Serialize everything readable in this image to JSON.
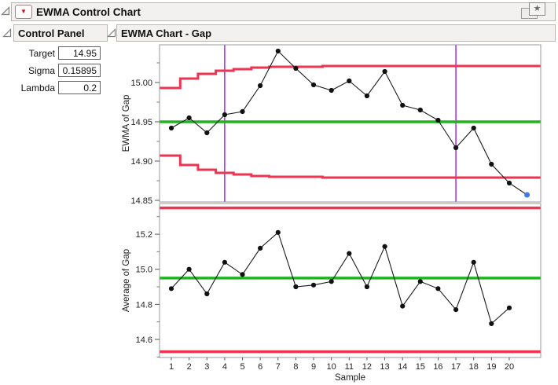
{
  "window": {
    "title": "EWMA Control Chart",
    "pin_glyph": "★",
    "menu_glyph": "▼"
  },
  "control_panel": {
    "title": "Control Panel",
    "fields": [
      {
        "label": "Target",
        "value": "14.95"
      },
      {
        "label": "Sigma",
        "value": "0.15895"
      },
      {
        "label": "Lambda",
        "value": "0.2"
      }
    ]
  },
  "report": {
    "title": "EWMA Chart - Gap"
  },
  "colors": {
    "limit": "#ee3450",
    "center": "#1fb41f",
    "phase": "#a42bdc",
    "line": "#1a1a1a",
    "point": "#111111",
    "selected_point": "#3e7be8",
    "axis": "#9a9a9a",
    "tick_text": "#1f1f1f"
  },
  "chart_data": [
    {
      "type": "line",
      "name": "ewma-chart",
      "ylabel": "EWMA of Gap",
      "xlabel": "",
      "x": [
        1,
        2,
        3,
        4,
        5,
        6,
        7,
        8,
        9,
        10,
        11,
        12,
        13,
        14,
        15,
        16,
        17,
        18,
        19,
        20,
        21
      ],
      "series": [
        {
          "name": "EWMA of Gap",
          "values": [
            14.942,
            14.955,
            14.936,
            14.959,
            14.963,
            14.996,
            15.04,
            15.018,
            14.997,
            14.99,
            15.002,
            14.983,
            15.014,
            14.971,
            14.965,
            14.952,
            14.917,
            14.942,
            14.896,
            14.872,
            14.857
          ]
        }
      ],
      "selected_point_index": 20,
      "center_line": 14.95,
      "ucl_steps": [
        14.993,
        15.005,
        15.011,
        15.015,
        15.017,
        15.019,
        15.02,
        15.02,
        15.02,
        15.021,
        15.021,
        15.021,
        15.021,
        15.021,
        15.021,
        15.021,
        15.021,
        15.021,
        15.021,
        15.021,
        15.021
      ],
      "lcl_steps": [
        14.907,
        14.895,
        14.889,
        14.885,
        14.883,
        14.881,
        14.88,
        14.88,
        14.88,
        14.879,
        14.879,
        14.879,
        14.879,
        14.879,
        14.879,
        14.879,
        14.879,
        14.879,
        14.879,
        14.879,
        14.879
      ],
      "phase_lines_x": [
        4,
        17
      ],
      "ylim": [
        14.848,
        15.048
      ],
      "yticks": [
        {
          "v": 15.0,
          "label": "15.00"
        },
        {
          "v": 14.95,
          "label": "14.95"
        },
        {
          "v": 14.9,
          "label": "14.90"
        },
        {
          "v": 14.85,
          "label": "14.85"
        }
      ],
      "yticks_minor": [
        15.025,
        14.975,
        14.925,
        14.875
      ],
      "show_xticks": false,
      "grid": false,
      "legend": "none"
    },
    {
      "type": "line",
      "name": "average-chart",
      "ylabel": "Average of Gap",
      "xlabel": "Sample",
      "x": [
        1,
        2,
        3,
        4,
        5,
        6,
        7,
        8,
        9,
        10,
        11,
        12,
        13,
        14,
        15,
        16,
        17,
        18,
        19,
        20
      ],
      "series": [
        {
          "name": "Average of Gap",
          "values": [
            14.89,
            15.0,
            14.86,
            15.04,
            14.97,
            15.12,
            15.21,
            14.9,
            14.91,
            14.93,
            15.09,
            14.9,
            15.13,
            14.79,
            14.93,
            14.89,
            14.77,
            15.04,
            14.69,
            14.78
          ]
        }
      ],
      "center_line": 14.95,
      "ucl": 15.35,
      "lcl": 14.53,
      "ylim": [
        14.497,
        15.375
      ],
      "yticks": [
        {
          "v": 15.2,
          "label": "15.2"
        },
        {
          "v": 15.0,
          "label": "15.0"
        },
        {
          "v": 14.8,
          "label": "14.8"
        },
        {
          "v": 14.6,
          "label": "14.6"
        }
      ],
      "yticks_minor": [
        15.3,
        15.1,
        14.9,
        14.7,
        14.5
      ],
      "show_xticks": true,
      "grid": false,
      "legend": "none"
    }
  ]
}
